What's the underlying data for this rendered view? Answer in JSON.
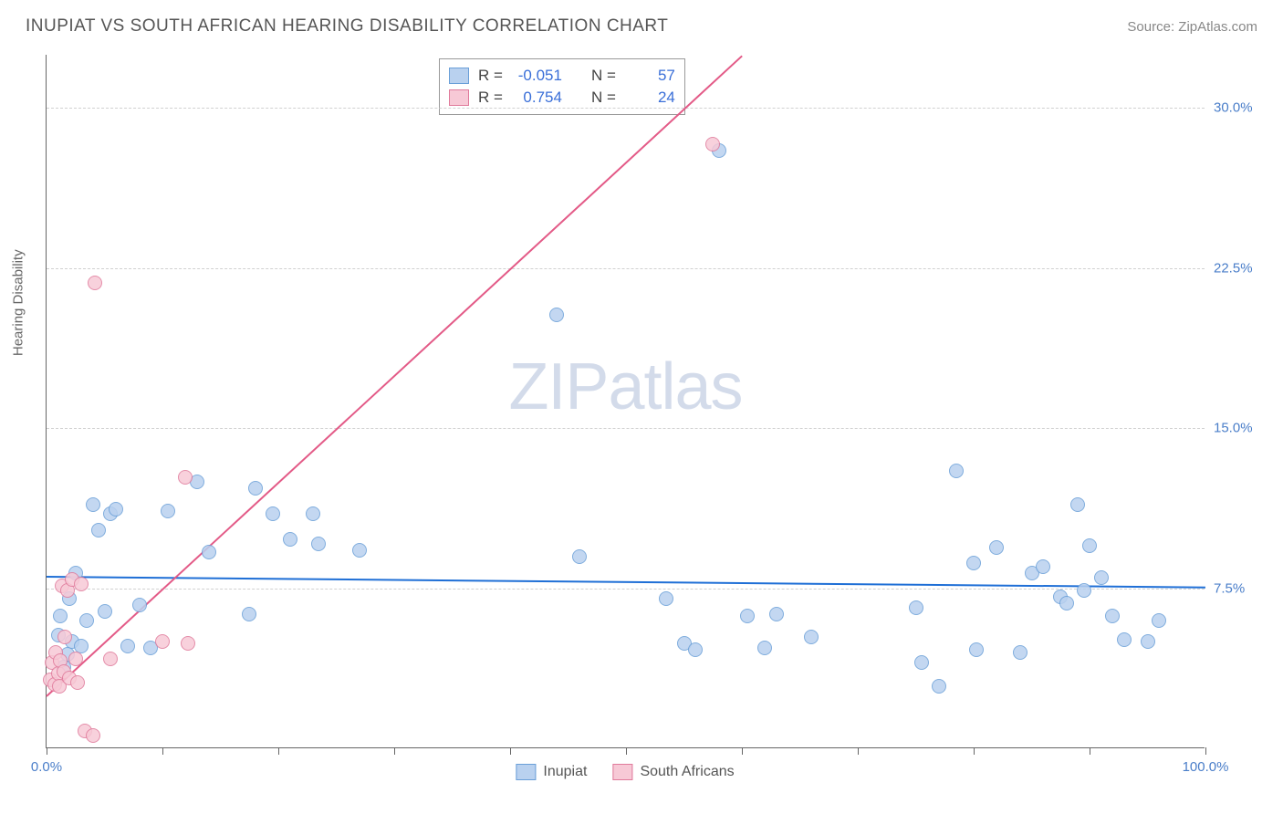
{
  "header": {
    "title": "INUPIAT VS SOUTH AFRICAN HEARING DISABILITY CORRELATION CHART",
    "source_prefix": "Source: ",
    "source_name": "ZipAtlas.com"
  },
  "chart": {
    "type": "scatter",
    "ylabel": "Hearing Disability",
    "watermark": "ZIPatlas",
    "background_color": "#ffffff",
    "grid_color": "#d0d0d0",
    "axis_color": "#666666",
    "xlim": [
      0,
      100
    ],
    "ylim": [
      0,
      32.5
    ],
    "yticks": [
      {
        "value": 7.5,
        "label": "7.5%"
      },
      {
        "value": 15.0,
        "label": "15.0%"
      },
      {
        "value": 22.5,
        "label": "22.5%"
      },
      {
        "value": 30.0,
        "label": "30.0%"
      }
    ],
    "xticks_minor_step": 10,
    "xtick_labels": [
      {
        "value": 0,
        "label": "0.0%"
      },
      {
        "value": 100,
        "label": "100.0%"
      }
    ],
    "label_color": "#4a7ec9",
    "label_fontsize": 15,
    "series": [
      {
        "name": "Inupiat",
        "color_fill": "#b9d1ef",
        "color_stroke": "#6a9fd8",
        "marker_size": 16,
        "R": "-0.051",
        "N": "57",
        "trend": {
          "x1": 0,
          "y1": 8.1,
          "x2": 100,
          "y2": 7.6,
          "color": "#1f6fd6",
          "width": 2
        },
        "points": [
          [
            1.0,
            5.3
          ],
          [
            1.2,
            6.2
          ],
          [
            1.5,
            3.8
          ],
          [
            1.8,
            4.4
          ],
          [
            2.0,
            7.0
          ],
          [
            2.2,
            5.0
          ],
          [
            2.5,
            8.2
          ],
          [
            3.0,
            4.8
          ],
          [
            3.5,
            6.0
          ],
          [
            4.0,
            11.4
          ],
          [
            4.5,
            10.2
          ],
          [
            5.0,
            6.4
          ],
          [
            5.5,
            11.0
          ],
          [
            6.0,
            11.2
          ],
          [
            7.0,
            4.8
          ],
          [
            8.0,
            6.7
          ],
          [
            9.0,
            4.7
          ],
          [
            10.5,
            11.1
          ],
          [
            13.0,
            12.5
          ],
          [
            14.0,
            9.2
          ],
          [
            17.5,
            6.3
          ],
          [
            18.0,
            12.2
          ],
          [
            19.5,
            11.0
          ],
          [
            21.0,
            9.8
          ],
          [
            23.0,
            11.0
          ],
          [
            23.5,
            9.6
          ],
          [
            27.0,
            9.3
          ],
          [
            44.0,
            20.3
          ],
          [
            46.0,
            9.0
          ],
          [
            53.5,
            7.0
          ],
          [
            55.0,
            4.9
          ],
          [
            56.0,
            4.6
          ],
          [
            58.0,
            28.0
          ],
          [
            60.5,
            6.2
          ],
          [
            62.0,
            4.7
          ],
          [
            63.0,
            6.3
          ],
          [
            66.0,
            5.2
          ],
          [
            75.0,
            6.6
          ],
          [
            75.5,
            4.0
          ],
          [
            77.0,
            2.9
          ],
          [
            78.5,
            13.0
          ],
          [
            80.0,
            8.7
          ],
          [
            80.2,
            4.6
          ],
          [
            82.0,
            9.4
          ],
          [
            84.0,
            4.5
          ],
          [
            85.0,
            8.2
          ],
          [
            86.0,
            8.5
          ],
          [
            87.5,
            7.1
          ],
          [
            88.0,
            6.8
          ],
          [
            89.0,
            11.4
          ],
          [
            89.5,
            7.4
          ],
          [
            90.0,
            9.5
          ],
          [
            91.0,
            8.0
          ],
          [
            92.0,
            6.2
          ],
          [
            93.0,
            5.1
          ],
          [
            95.0,
            5.0
          ],
          [
            96.0,
            6.0
          ]
        ]
      },
      {
        "name": "South Africans",
        "color_fill": "#f7c9d6",
        "color_stroke": "#e07a9b",
        "marker_size": 16,
        "R": "0.754",
        "N": "24",
        "trend": {
          "x1": 0,
          "y1": 2.5,
          "x2": 60,
          "y2": 32.5,
          "color": "#e35a87",
          "width": 2
        },
        "points": [
          [
            0.3,
            3.2
          ],
          [
            0.5,
            4.0
          ],
          [
            0.7,
            3.0
          ],
          [
            0.8,
            4.5
          ],
          [
            1.0,
            3.5
          ],
          [
            1.1,
            2.9
          ],
          [
            1.2,
            4.1
          ],
          [
            1.3,
            7.6
          ],
          [
            1.5,
            3.6
          ],
          [
            1.6,
            5.2
          ],
          [
            1.8,
            7.4
          ],
          [
            2.0,
            3.3
          ],
          [
            2.2,
            7.9
          ],
          [
            2.5,
            4.2
          ],
          [
            2.7,
            3.1
          ],
          [
            3.0,
            7.7
          ],
          [
            3.3,
            0.8
          ],
          [
            4.0,
            0.6
          ],
          [
            4.2,
            21.8
          ],
          [
            5.5,
            4.2
          ],
          [
            10.0,
            5.0
          ],
          [
            12.0,
            12.7
          ],
          [
            12.2,
            4.9
          ],
          [
            57.5,
            28.3
          ]
        ]
      }
    ]
  },
  "stats_box": {
    "rows": [
      {
        "swatch_fill": "#b9d1ef",
        "swatch_stroke": "#6a9fd8",
        "R_label": "R =",
        "R_val": "-0.051",
        "N_label": "N =",
        "N_val": "57"
      },
      {
        "swatch_fill": "#f7c9d6",
        "swatch_stroke": "#e07a9b",
        "R_label": "R =",
        "R_val": "0.754",
        "N_label": "N =",
        "N_val": "24"
      }
    ]
  },
  "legend": {
    "items": [
      {
        "label": "Inupiat",
        "fill": "#b9d1ef",
        "stroke": "#6a9fd8"
      },
      {
        "label": "South Africans",
        "fill": "#f7c9d6",
        "stroke": "#e07a9b"
      }
    ]
  }
}
